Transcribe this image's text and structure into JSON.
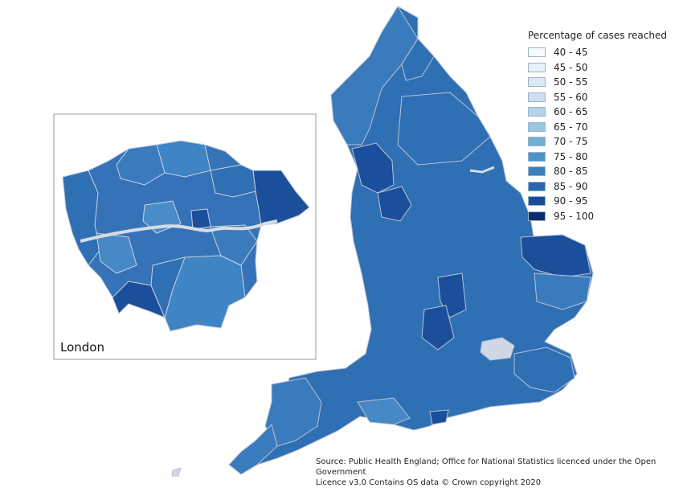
{
  "legend": {
    "title": "Percentage of cases reached",
    "items": [
      {
        "label": "40 - 45",
        "color": "#f7fbff"
      },
      {
        "label": "45 - 50",
        "color": "#e8f1fb"
      },
      {
        "label": "50 - 55",
        "color": "#dbe9f6"
      },
      {
        "label": "55 - 60",
        "color": "#cddff0"
      },
      {
        "label": "60 - 65",
        "color": "#b4d3e9"
      },
      {
        "label": "65 - 70",
        "color": "#9ac7e1"
      },
      {
        "label": "70 - 75",
        "color": "#6fb0d7"
      },
      {
        "label": "75 - 80",
        "color": "#4a94c7"
      },
      {
        "label": "80 - 85",
        "color": "#3b7fc0"
      },
      {
        "label": "85 - 90",
        "color": "#2c66ad"
      },
      {
        "label": "90 - 95",
        "color": "#1a4d99"
      },
      {
        "label": "95 - 100",
        "color": "#0b2f6e"
      }
    ]
  },
  "inset": {
    "label": "London"
  },
  "source": {
    "line1": "Source: Public Health England; Office for National Statistics licenced under the Open Government",
    "line2": "Licence v3.0 Contains OS data © Crown copyright 2020"
  },
  "colors": {
    "boundary": "#b7c3d3",
    "frame": "#9a9a9a",
    "background": "#ffffff"
  }
}
